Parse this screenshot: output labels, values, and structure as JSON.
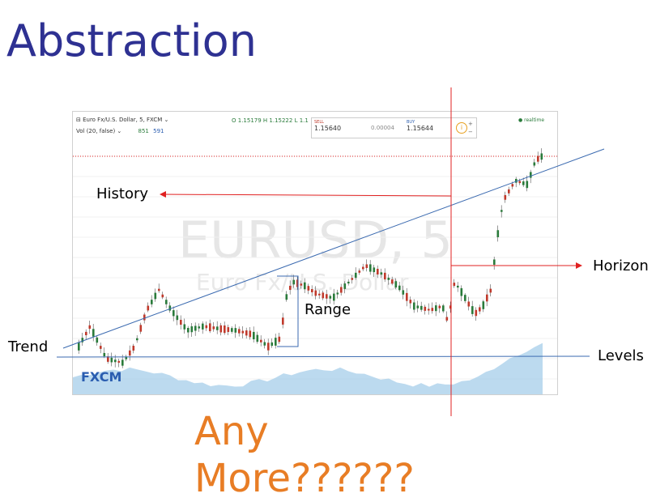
{
  "slide": {
    "title": "Abstraction",
    "labels": {
      "history": "History",
      "range": "Range",
      "horizon": "Horizon",
      "trend": "Trend",
      "levels": "Levels"
    },
    "footer": "Any More??????"
  },
  "chart": {
    "title": "⊟ Euro Fx/U.S. Dollar, 5, FXCM ⌄",
    "volume_label": "Vol (20, false) ⌄",
    "volume_values": [
      "851",
      "591"
    ],
    "ohlc_text": "O 1.15179  H 1.15222  L 1.1",
    "sell_caption": "SELL",
    "sell_price": "1.15640",
    "spread": "0.00004",
    "buy_caption": "BUY",
    "buy_price": "1.15644",
    "realtime": "● realtime",
    "watermark": "EURUSD, 5",
    "watermark_sub": "Euro Fx/U.S. Dollar",
    "logo": "FXCM",
    "colors": {
      "up": "#2a7b3b",
      "down": "#c0392b",
      "trend": "#3b6ab0",
      "marker": "#e02020",
      "volume": "#9fcbe8"
    }
  }
}
